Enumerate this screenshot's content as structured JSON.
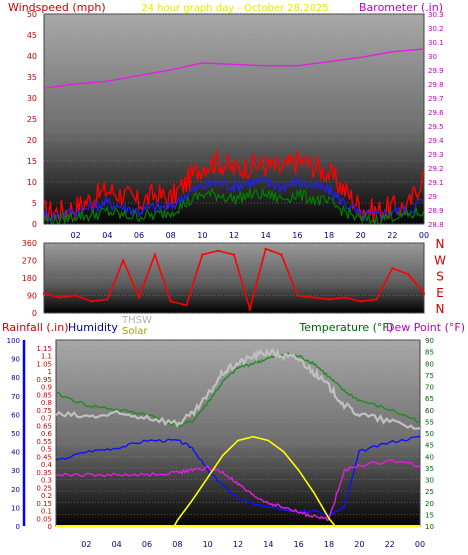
{
  "title": "24 hour graph day - October 28,2025",
  "colors": {
    "windspeed": "#ff2020",
    "gust": "#ff0000",
    "wind_avg": "#2020ff",
    "wind_low": "#008000",
    "barometer": "#e020e0",
    "direction": "#ff0000",
    "rainfall": "#0000ff",
    "humidity": "#1010ff",
    "thsw": "#c0c0c0",
    "solar": "#ffff00",
    "temperature": "#228b22",
    "dewpoint": "#e020e0",
    "wind_label": "#cc0000",
    "baro_label": "#c000c0"
  },
  "chart_data": [
    {
      "type": "line",
      "left_label": "Windspeed (mph)",
      "right_label": "Barometer (.in)",
      "x_ticks": [
        "02",
        "04",
        "06",
        "08",
        "10",
        "12",
        "14",
        "16",
        "18",
        "20",
        "22",
        "00"
      ],
      "y_left": {
        "min": 0,
        "max": 50,
        "ticks": [
          "0",
          "5",
          "10",
          "15",
          "20",
          "25",
          "30",
          "35",
          "40",
          "45",
          "50"
        ]
      },
      "y_right": {
        "min": 28.8,
        "max": 30.3,
        "ticks": [
          "28.8",
          "28.9",
          "29",
          "29.1",
          "29.2",
          "29.3",
          "29.4",
          "29.5",
          "29.6",
          "29.7",
          "29.8",
          "29.9",
          "30",
          "30.1",
          "30.2",
          "30.3"
        ]
      },
      "series": [
        {
          "key": "gust",
          "axis": "left",
          "x": [
            0,
            1,
            2,
            3,
            4,
            5,
            6,
            7,
            8,
            9,
            10,
            11,
            12,
            13,
            14,
            15,
            16,
            17,
            18,
            19,
            20,
            21,
            22,
            23,
            24
          ],
          "values": [
            3,
            3,
            4,
            6,
            8,
            7,
            5,
            7,
            6,
            10,
            14,
            15,
            13,
            14,
            14,
            13,
            15,
            14,
            12,
            8,
            4,
            3,
            4,
            4,
            12
          ]
        },
        {
          "key": "wind_avg",
          "axis": "left",
          "x": [
            0,
            1,
            2,
            3,
            4,
            5,
            6,
            7,
            8,
            9,
            10,
            11,
            12,
            13,
            14,
            15,
            16,
            17,
            18,
            19,
            20,
            21,
            22,
            23,
            24
          ],
          "values": [
            2,
            2,
            3,
            4,
            5,
            4,
            3,
            4,
            4,
            7,
            9,
            10,
            9,
            10,
            10,
            9,
            10,
            9,
            8,
            5,
            2,
            2,
            3,
            3,
            6
          ]
        },
        {
          "key": "wind_low",
          "axis": "left",
          "x": [
            0,
            1,
            2,
            3,
            4,
            5,
            6,
            7,
            8,
            9,
            10,
            11,
            12,
            13,
            14,
            15,
            16,
            17,
            18,
            19,
            20,
            21,
            22,
            23,
            24
          ],
          "values": [
            1,
            1,
            2,
            2,
            3,
            2,
            2,
            2,
            3,
            5,
            7,
            7,
            6,
            7,
            7,
            6,
            7,
            6,
            5,
            3,
            1,
            1,
            2,
            2,
            3
          ]
        },
        {
          "key": "barometer",
          "axis": "right",
          "x": [
            0,
            2,
            4,
            6,
            8,
            10,
            12,
            14,
            16,
            18,
            20,
            22,
            24
          ],
          "values": [
            29.77,
            29.8,
            29.82,
            29.86,
            29.9,
            29.95,
            29.94,
            29.93,
            29.93,
            29.96,
            29.99,
            30.03,
            30.05
          ]
        }
      ]
    },
    {
      "type": "scatter",
      "left_label": "",
      "right_label": "N W S E N",
      "right_compass": [
        "N",
        "W",
        "S",
        "E",
        "N"
      ],
      "y_left": {
        "min": 0,
        "max": 360,
        "ticks": [
          "0",
          "90",
          "180",
          "270",
          "360"
        ]
      },
      "x": [
        0,
        1,
        2,
        3,
        4,
        5,
        6,
        7,
        8,
        9,
        10,
        11,
        12,
        13,
        14,
        15,
        16,
        17,
        18,
        19,
        20,
        21,
        22,
        23,
        24
      ],
      "values": [
        100,
        80,
        90,
        60,
        70,
        270,
        80,
        300,
        60,
        40,
        300,
        320,
        300,
        20,
        330,
        300,
        90,
        80,
        70,
        80,
        60,
        70,
        230,
        200,
        100
      ]
    },
    {
      "type": "line",
      "left_labels": [
        "Rainfall (.in)",
        "Humidity",
        "THSW",
        "Solar"
      ],
      "right_labels": [
        "Temperature (°F)",
        "Dew Point (°F)"
      ],
      "x_ticks": [
        "02",
        "04",
        "06",
        "08",
        "10",
        "12",
        "14",
        "16",
        "18",
        "20",
        "22",
        "00"
      ],
      "y_humidity": {
        "min": 0,
        "max": 100,
        "ticks": [
          "0",
          "10",
          "20",
          "30",
          "40",
          "50",
          "60",
          "70",
          "80",
          "90",
          "100"
        ]
      },
      "y_rain": {
        "min": 0,
        "max": 1.2,
        "ticks": [
          "0",
          "0.05",
          "0.1",
          "0.15",
          "0.2",
          "0.25",
          "0.3",
          "0.35",
          "0.4",
          "0.45",
          "0.5",
          "0.55",
          "0.6",
          "0.65",
          "0.7",
          "0.75",
          "0.8",
          "0.85",
          "0.9",
          "0.95",
          "1",
          "1.05",
          "1.1",
          "1.15"
        ]
      },
      "y_temp": {
        "min": 10,
        "max": 90,
        "ticks": [
          "10",
          "15",
          "20",
          "25",
          "30",
          "35",
          "40",
          "45",
          "50",
          "55",
          "60",
          "65",
          "70",
          "75",
          "80",
          "85",
          "90"
        ]
      },
      "series": [
        {
          "key": "temperature",
          "axis": "temp",
          "x": [
            0,
            2,
            4,
            6,
            8,
            9,
            10,
            11,
            12,
            13,
            14,
            15,
            16,
            17,
            18,
            19,
            20,
            22,
            24
          ],
          "values": [
            67,
            62,
            60,
            58,
            53,
            55,
            63,
            72,
            78,
            80,
            82,
            84,
            83,
            80,
            74,
            68,
            64,
            60,
            55
          ]
        },
        {
          "key": "thsw",
          "axis": "temp",
          "x": [
            0,
            2,
            4,
            6,
            8,
            9,
            10,
            11,
            12,
            13,
            14,
            15,
            16,
            17,
            18,
            19,
            20,
            22,
            24
          ],
          "values": [
            58,
            57,
            58,
            57,
            54,
            58,
            66,
            76,
            80,
            83,
            85,
            83,
            82,
            76,
            70,
            62,
            58,
            55,
            52
          ]
        },
        {
          "key": "humidity",
          "axis": "hum",
          "x": [
            0,
            2,
            4,
            6,
            8,
            9,
            10,
            11,
            12,
            13,
            14,
            15,
            16,
            17,
            18,
            19,
            20,
            22,
            24
          ],
          "values": [
            35,
            40,
            42,
            46,
            46,
            42,
            30,
            22,
            15,
            12,
            10,
            9,
            8,
            8,
            6,
            10,
            40,
            45,
            48
          ]
        },
        {
          "key": "dewpoint",
          "axis": "temp",
          "x": [
            0,
            2,
            4,
            6,
            8,
            9,
            10,
            11,
            12,
            13,
            14,
            15,
            16,
            17,
            18,
            19,
            20,
            22,
            24
          ],
          "values": [
            32,
            32,
            32,
            32,
            33,
            34,
            35,
            33,
            28,
            23,
            20,
            18,
            16,
            14,
            13,
            34,
            36,
            38,
            36
          ]
        },
        {
          "key": "solar",
          "axis": "hum",
          "x": [
            7.8,
            8,
            9,
            10,
            11,
            12,
            13,
            14,
            15,
            16,
            17,
            18,
            18.4
          ],
          "values": [
            0,
            3,
            14,
            26,
            38,
            46,
            48,
            46,
            40,
            30,
            18,
            4,
            0
          ]
        },
        {
          "key": "rainfall",
          "axis": "rain",
          "x": [
            0,
            24
          ],
          "values": [
            0,
            0
          ]
        }
      ]
    }
  ]
}
